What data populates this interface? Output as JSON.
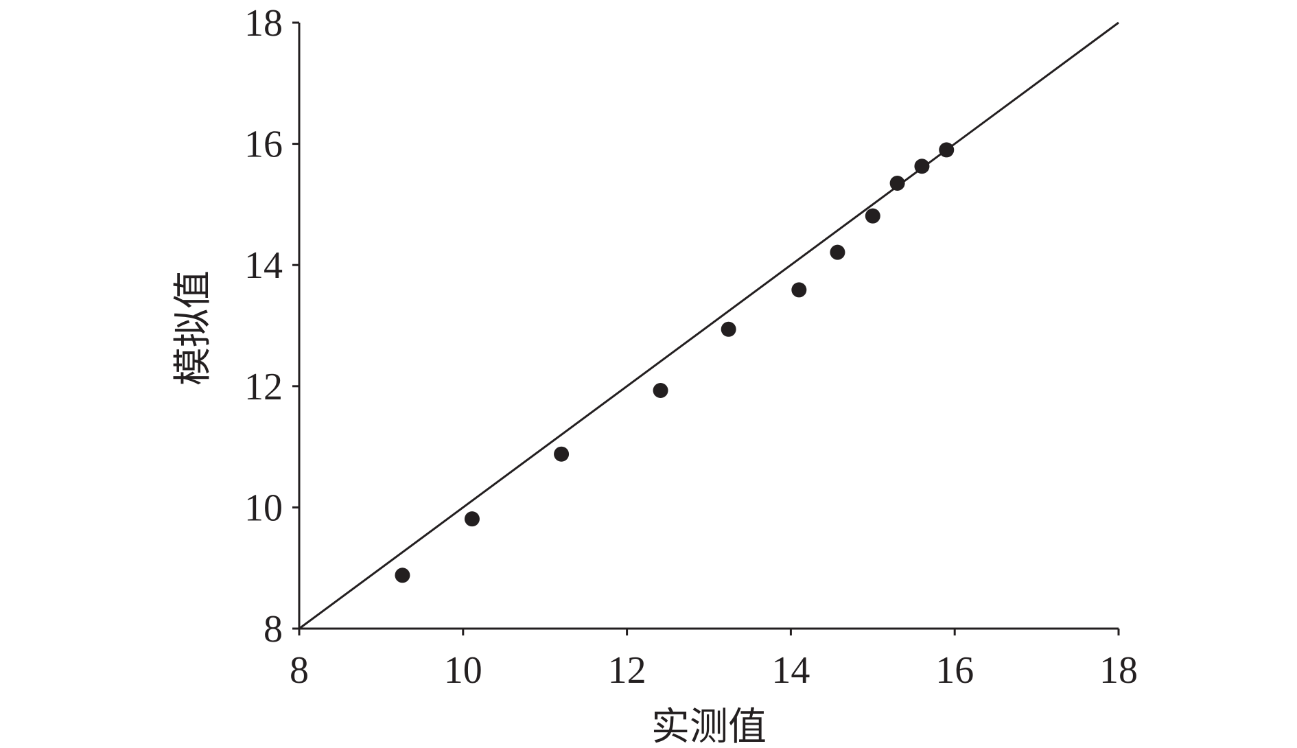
{
  "chart_data": {
    "type": "scatter",
    "x_label": "实测值",
    "y_label": "模拟值",
    "xlim": [
      8,
      18
    ],
    "ylim": [
      8,
      18
    ],
    "xticks": [
      8,
      10,
      12,
      14,
      16,
      18
    ],
    "yticks": [
      8,
      10,
      12,
      14,
      16,
      18
    ],
    "grid": false,
    "series": [
      {
        "color": "#231f20",
        "x": [
          9.26,
          10.11,
          11.2,
          12.41,
          13.24,
          14.1,
          14.57,
          15.0,
          15.3,
          15.6,
          15.9
        ],
        "values": [
          8.88,
          9.81,
          10.88,
          11.93,
          12.94,
          13.59,
          14.21,
          14.81,
          15.35,
          15.63,
          15.9
        ]
      }
    ],
    "reference_line": {
      "color": "#231f20",
      "x": [
        8,
        18
      ],
      "values": [
        8,
        18
      ]
    }
  }
}
